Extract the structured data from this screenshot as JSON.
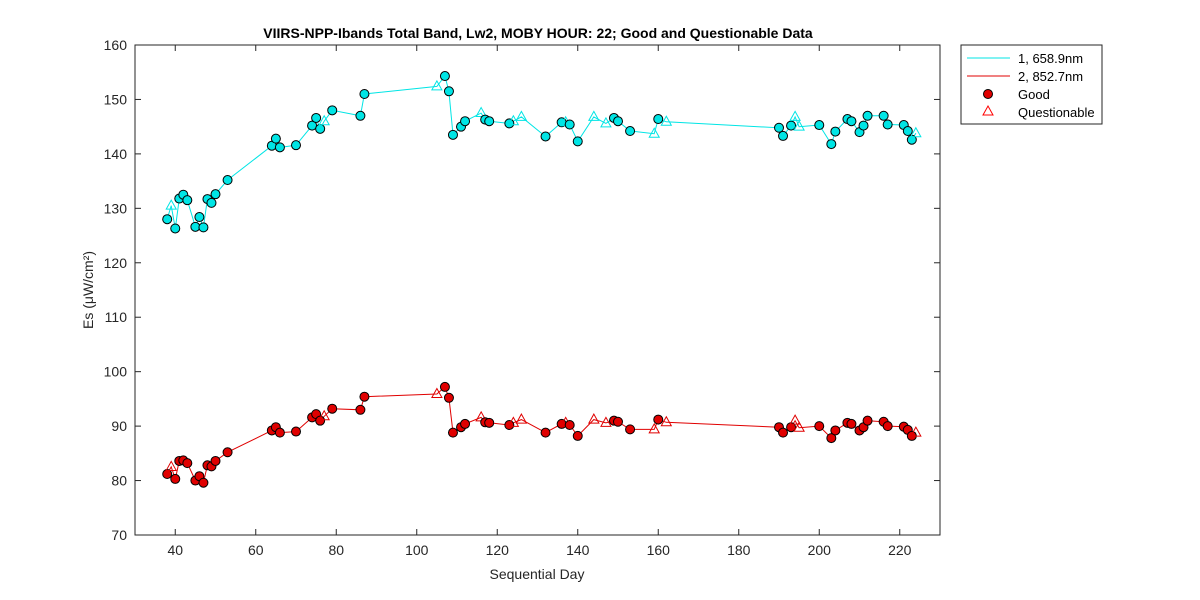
{
  "chart_data": {
    "type": "line",
    "title": "VIIRS-NPP-Ibands Total Band,  Lw2, MOBY HOUR: 22;  Good and Questionable Data",
    "xlabel": "Sequential Day",
    "ylabel": "Es (μW/cm²)",
    "xlim": [
      30,
      230
    ],
    "ylim": [
      70,
      160
    ],
    "xticks": [
      40,
      60,
      80,
      100,
      120,
      140,
      160,
      180,
      200,
      220
    ],
    "yticks": [
      70,
      80,
      90,
      100,
      110,
      120,
      130,
      140,
      150,
      160
    ],
    "grid": false,
    "legend_location": "outside-top-right",
    "legend": [
      {
        "label": "1, 658.9nm",
        "kind": "line",
        "color": "#00e5e5"
      },
      {
        "label": "2, 852.7nm",
        "kind": "line",
        "color": "#e00000"
      },
      {
        "label": "Good",
        "kind": "marker-circle",
        "color": "#000000"
      },
      {
        "label": "Questionable",
        "kind": "marker-triangle",
        "color": "#ff0000"
      }
    ],
    "series": [
      {
        "name": "1, 658.9nm",
        "color": "#00e5e5",
        "fill": "#00e5e5",
        "x": [
          38,
          39,
          40,
          41,
          42,
          43,
          45,
          46,
          47,
          48,
          49,
          50,
          53,
          64,
          65,
          66,
          70,
          74,
          75,
          76,
          77,
          79,
          86,
          87,
          105,
          107,
          108,
          109,
          111,
          112,
          116,
          117,
          118,
          123,
          124,
          126,
          132,
          136,
          137,
          138,
          140,
          144,
          147,
          149,
          150,
          153,
          159,
          160,
          162,
          190,
          191,
          193,
          194,
          195,
          200,
          203,
          204,
          207,
          208,
          210,
          211,
          212,
          216,
          217,
          221,
          222,
          223,
          224
        ],
        "y": [
          128,
          130.5,
          126.3,
          131.8,
          132.5,
          131.5,
          126.6,
          128.4,
          126.5,
          131.7,
          131,
          132.6,
          135.2,
          141.5,
          142.8,
          141.2,
          141.6,
          145.2,
          146.6,
          144.6,
          146,
          148,
          147,
          151,
          152.4,
          154.3,
          151.5,
          143.5,
          145,
          146,
          147.5,
          146.3,
          146,
          145.6,
          146,
          146.8,
          143.2,
          145.8,
          145.8,
          145.4,
          142.3,
          146.8,
          145.6,
          146.6,
          146,
          144.2,
          143.7,
          146.4,
          145.9,
          144.8,
          143.3,
          145.2,
          146.8,
          145,
          145.3,
          141.8,
          144.1,
          146.4,
          146,
          144,
          145.2,
          147,
          147,
          145.4,
          145.3,
          144.2,
          142.6,
          143.8
        ],
        "flags": [
          "G",
          "Q",
          "G",
          "G",
          "G",
          "G",
          "G",
          "G",
          "G",
          "G",
          "G",
          "G",
          "G",
          "G",
          "G",
          "G",
          "G",
          "G",
          "G",
          "G",
          "Q",
          "G",
          "G",
          "G",
          "Q",
          "G",
          "G",
          "G",
          "G",
          "G",
          "Q",
          "G",
          "G",
          "G",
          "Q",
          "Q",
          "G",
          "G",
          "Q",
          "G",
          "G",
          "Q",
          "Q",
          "G",
          "G",
          "G",
          "Q",
          "G",
          "Q",
          "G",
          "G",
          "G",
          "Q",
          "Q",
          "G",
          "G",
          "G",
          "G",
          "G",
          "G",
          "G",
          "G",
          "G",
          "G",
          "G",
          "G",
          "G",
          "Q"
        ]
      },
      {
        "name": "2, 852.7nm",
        "color": "#e00000",
        "fill": "#e00000",
        "x": [
          38,
          39,
          40,
          41,
          42,
          43,
          45,
          46,
          47,
          48,
          49,
          50,
          53,
          64,
          65,
          66,
          70,
          74,
          75,
          76,
          77,
          79,
          86,
          87,
          105,
          107,
          108,
          109,
          111,
          112,
          116,
          117,
          118,
          123,
          124,
          126,
          132,
          136,
          137,
          138,
          140,
          144,
          147,
          149,
          150,
          153,
          159,
          160,
          162,
          190,
          191,
          193,
          194,
          195,
          200,
          203,
          204,
          207,
          208,
          210,
          211,
          212,
          216,
          217,
          221,
          222,
          223,
          224
        ],
        "y": [
          81.2,
          82.5,
          80.3,
          83.6,
          83.7,
          83.2,
          80,
          80.8,
          79.6,
          82.8,
          82.6,
          83.6,
          85.2,
          89.2,
          89.8,
          88.8,
          89,
          91.6,
          92.2,
          91,
          91.8,
          93.2,
          93,
          95.4,
          95.9,
          97.2,
          95.2,
          88.8,
          89.8,
          90.4,
          91.6,
          90.7,
          90.6,
          90.2,
          90.6,
          91.2,
          88.8,
          90.4,
          90.6,
          90.2,
          88.2,
          91.2,
          90.6,
          91,
          90.8,
          89.4,
          89.4,
          91.2,
          90.7,
          89.8,
          88.8,
          89.8,
          91,
          89.7,
          90,
          87.8,
          89.2,
          90.6,
          90.4,
          89.2,
          89.8,
          91,
          90.8,
          90,
          89.9,
          89.3,
          88.2,
          88.8
        ],
        "flags": [
          "G",
          "Q",
          "G",
          "G",
          "G",
          "G",
          "G",
          "G",
          "G",
          "G",
          "G",
          "G",
          "G",
          "G",
          "G",
          "G",
          "G",
          "G",
          "G",
          "G",
          "Q",
          "G",
          "G",
          "G",
          "Q",
          "G",
          "G",
          "G",
          "G",
          "G",
          "Q",
          "G",
          "G",
          "G",
          "Q",
          "Q",
          "G",
          "G",
          "Q",
          "G",
          "G",
          "Q",
          "Q",
          "G",
          "G",
          "G",
          "Q",
          "G",
          "Q",
          "G",
          "G",
          "G",
          "Q",
          "Q",
          "G",
          "G",
          "G",
          "G",
          "G",
          "G",
          "G",
          "G",
          "G",
          "G",
          "G",
          "G",
          "G",
          "Q"
        ]
      }
    ]
  }
}
